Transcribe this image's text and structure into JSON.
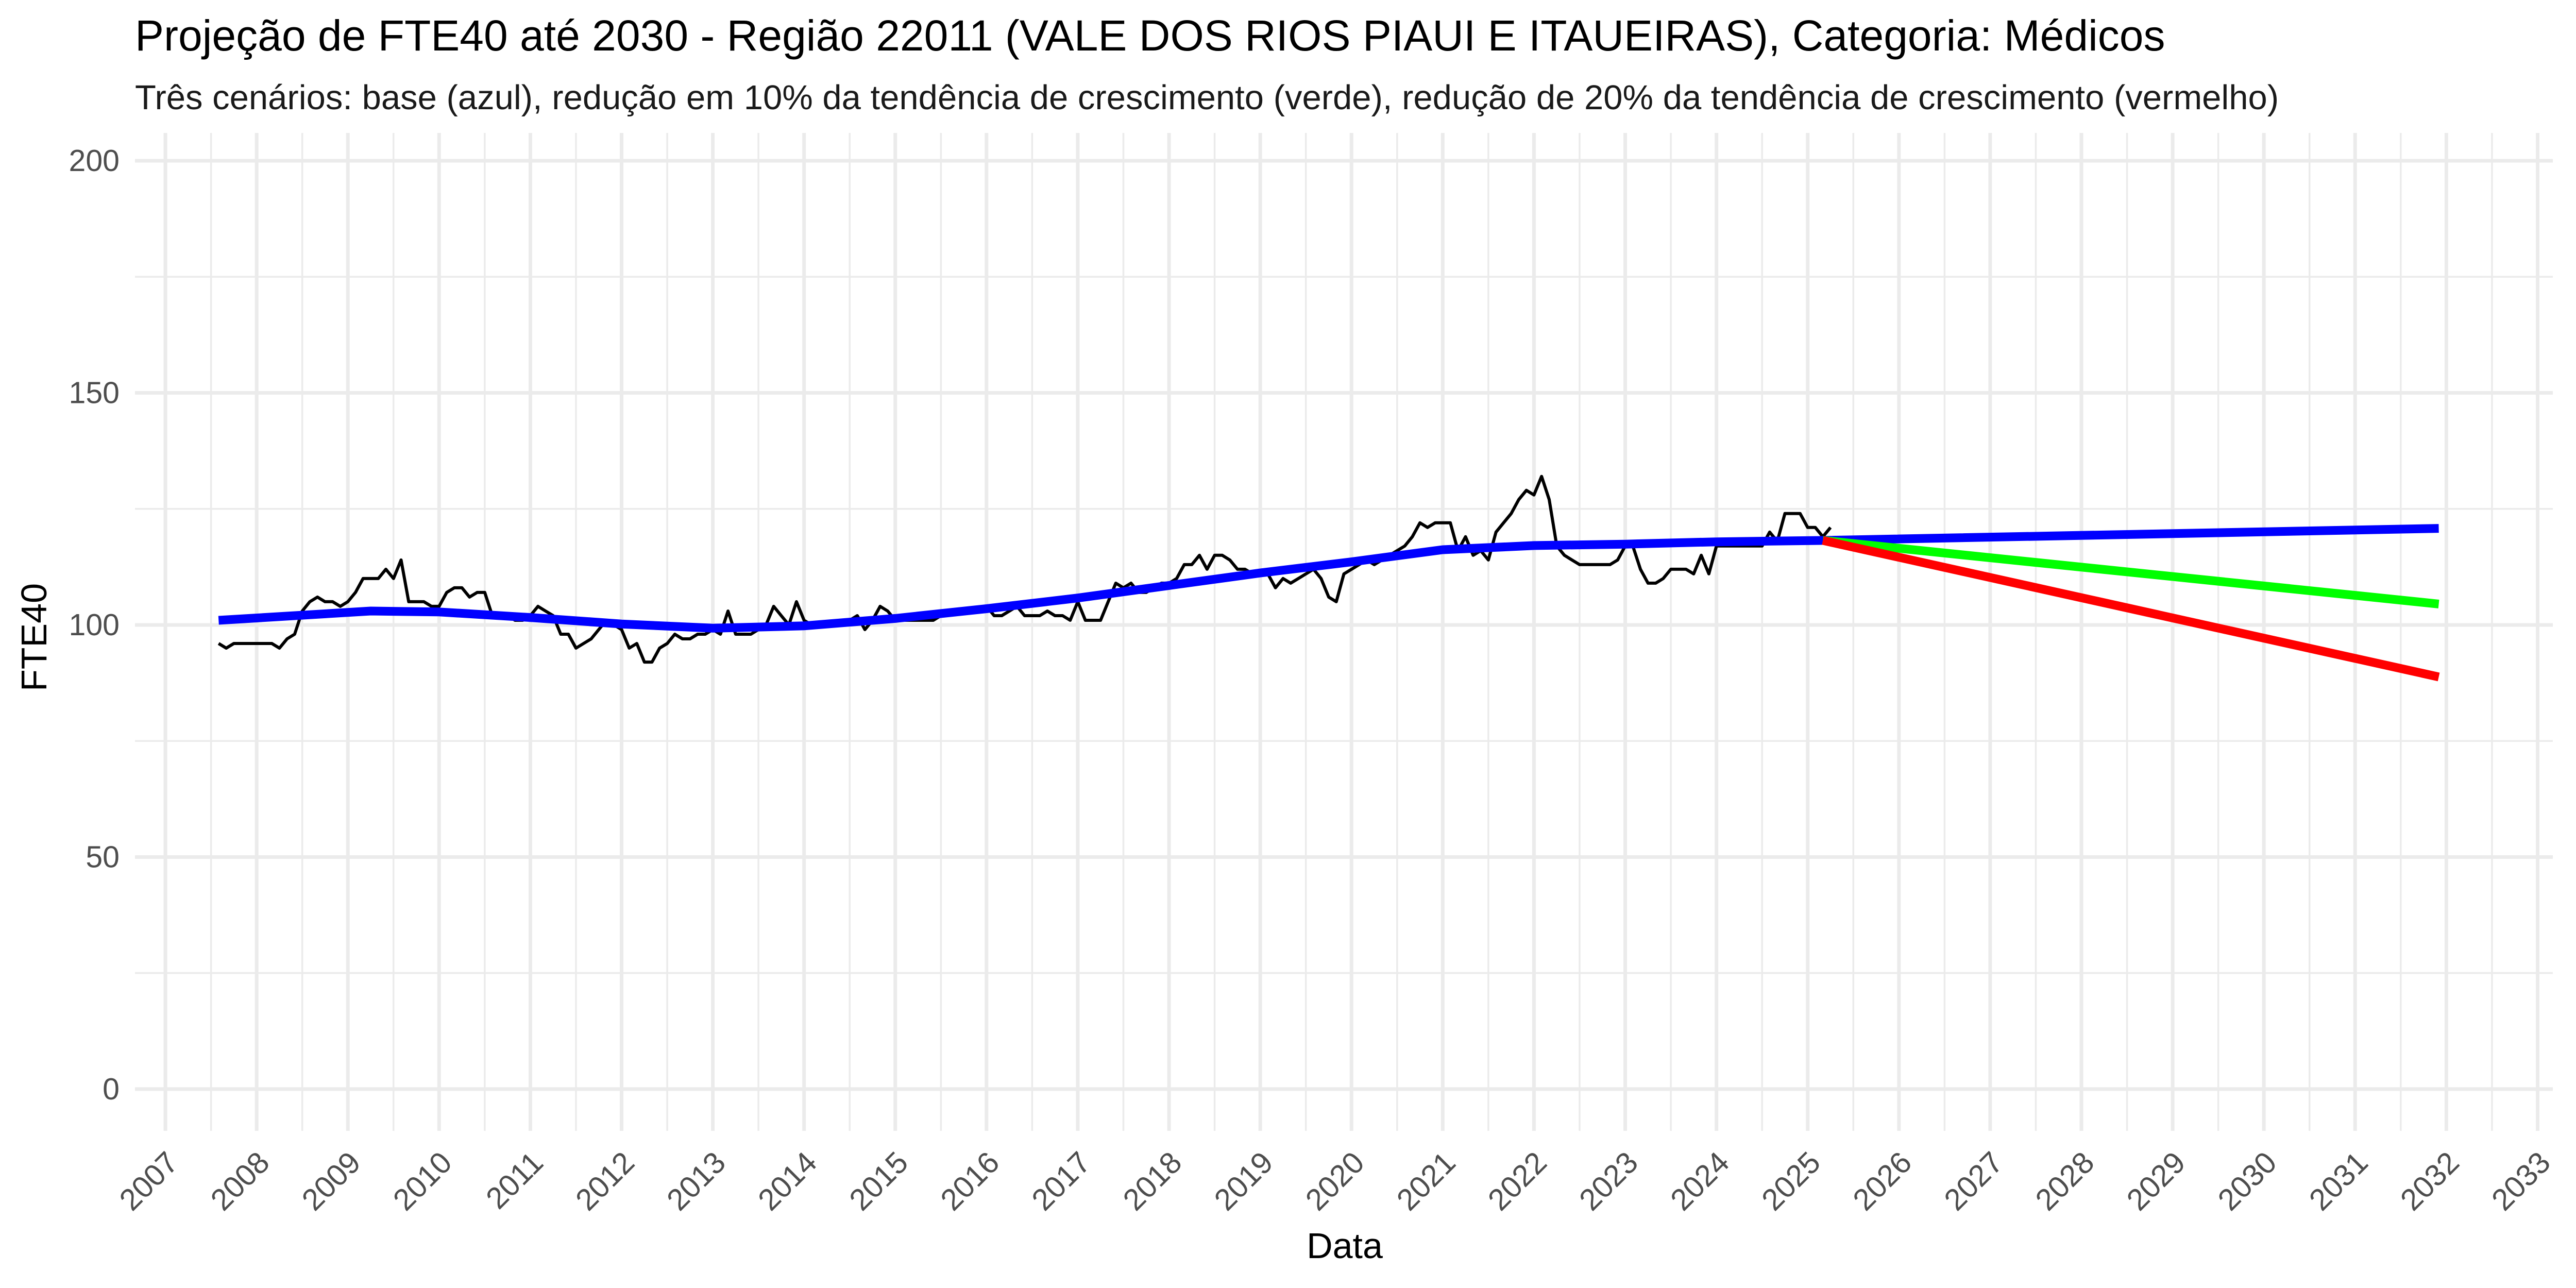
{
  "chart_data": {
    "type": "line",
    "title": "Projeção de FTE40 até 2030 - Região 22011 (VALE DOS RIOS PIAUI E ITAUEIRAS), Categoria: Médicos",
    "subtitle": "Três cenários: base (azul), redução em 10% da tendência de crescimento (verde), redução de 20% da tendência de crescimento (vermelho)",
    "xlabel": "Data",
    "ylabel": "FTE40",
    "xlim": [
      "2006-09",
      "2033-03"
    ],
    "ylim": [
      -9,
      206
    ],
    "x_ticks": [
      "2007",
      "2008",
      "2009",
      "2010",
      "2011",
      "2012",
      "2013",
      "2014",
      "2015",
      "2016",
      "2017",
      "2018",
      "2019",
      "2020",
      "2021",
      "2022",
      "2023",
      "2024",
      "2025",
      "2026",
      "2027",
      "2028",
      "2029",
      "2030",
      "2031",
      "2032",
      "2033"
    ],
    "y_ticks": [
      0,
      50,
      100,
      150,
      200
    ],
    "grid": true,
    "legend": "none",
    "colors": {
      "observed": "#000000",
      "base": "#0000ff",
      "reduction_10": "#00ff00",
      "reduction_20": "#ff0000",
      "grid": "#ebebeb"
    },
    "series": [
      {
        "color": "#000000",
        "points": [
          [
            "2007-08",
            96
          ],
          [
            "2007-09",
            95
          ],
          [
            "2007-10",
            96
          ],
          [
            "2007-11",
            96
          ],
          [
            "2007-12",
            96
          ],
          [
            "2008-01",
            96
          ],
          [
            "2008-02",
            96
          ],
          [
            "2008-03",
            96
          ],
          [
            "2008-04",
            95
          ],
          [
            "2008-05",
            97
          ],
          [
            "2008-06",
            98
          ],
          [
            "2008-07",
            103
          ],
          [
            "2008-08",
            105
          ],
          [
            "2008-09",
            106
          ],
          [
            "2008-10",
            105
          ],
          [
            "2008-11",
            105
          ],
          [
            "2008-12",
            104
          ],
          [
            "2009-01",
            105
          ],
          [
            "2009-02",
            107
          ],
          [
            "2009-03",
            110
          ],
          [
            "2009-04",
            110
          ],
          [
            "2009-05",
            110
          ],
          [
            "2009-06",
            112
          ],
          [
            "2009-07",
            110
          ],
          [
            "2009-08",
            114
          ],
          [
            "2009-09",
            105
          ],
          [
            "2009-10",
            105
          ],
          [
            "2009-11",
            105
          ],
          [
            "2009-12",
            104
          ],
          [
            "2010-01",
            104
          ],
          [
            "2010-02",
            107
          ],
          [
            "2010-03",
            108
          ],
          [
            "2010-04",
            108
          ],
          [
            "2010-05",
            106
          ],
          [
            "2010-06",
            107
          ],
          [
            "2010-07",
            107
          ],
          [
            "2010-08",
            102
          ],
          [
            "2010-09",
            102
          ],
          [
            "2010-10",
            102
          ],
          [
            "2010-11",
            101
          ],
          [
            "2010-12",
            101
          ],
          [
            "2011-01",
            102
          ],
          [
            "2011-02",
            104
          ],
          [
            "2011-03",
            103
          ],
          [
            "2011-04",
            102
          ],
          [
            "2011-05",
            98
          ],
          [
            "2011-06",
            98
          ],
          [
            "2011-07",
            95
          ],
          [
            "2011-08",
            96
          ],
          [
            "2011-09",
            97
          ],
          [
            "2011-10",
            99
          ],
          [
            "2011-11",
            101
          ],
          [
            "2011-12",
            100
          ],
          [
            "2012-01",
            99
          ],
          [
            "2012-02",
            95
          ],
          [
            "2012-03",
            96
          ],
          [
            "2012-04",
            92
          ],
          [
            "2012-05",
            92
          ],
          [
            "2012-06",
            95
          ],
          [
            "2012-07",
            96
          ],
          [
            "2012-08",
            98
          ],
          [
            "2012-09",
            97
          ],
          [
            "2012-10",
            97
          ],
          [
            "2012-11",
            98
          ],
          [
            "2012-12",
            98
          ],
          [
            "2013-01",
            99
          ],
          [
            "2013-02",
            98
          ],
          [
            "2013-03",
            103
          ],
          [
            "2013-04",
            98
          ],
          [
            "2013-05",
            98
          ],
          [
            "2013-06",
            98
          ],
          [
            "2013-07",
            99
          ],
          [
            "2013-08",
            100
          ],
          [
            "2013-09",
            104
          ],
          [
            "2013-10",
            102
          ],
          [
            "2013-11",
            100
          ],
          [
            "2013-12",
            105
          ],
          [
            "2014-01",
            101
          ],
          [
            "2014-02",
            100
          ],
          [
            "2014-03",
            100
          ],
          [
            "2014-04",
            100
          ],
          [
            "2014-05",
            100
          ],
          [
            "2014-06",
            101
          ],
          [
            "2014-07",
            101
          ],
          [
            "2014-08",
            102
          ],
          [
            "2014-09",
            99
          ],
          [
            "2014-10",
            101
          ],
          [
            "2014-11",
            104
          ],
          [
            "2014-12",
            103
          ],
          [
            "2015-01",
            101
          ],
          [
            "2015-02",
            101
          ],
          [
            "2015-03",
            101
          ],
          [
            "2015-04",
            101
          ],
          [
            "2015-05",
            101
          ],
          [
            "2015-06",
            101
          ],
          [
            "2015-07",
            102
          ],
          [
            "2015-08",
            103
          ],
          [
            "2015-09",
            103
          ],
          [
            "2015-10",
            103
          ],
          [
            "2015-11",
            103
          ],
          [
            "2015-12",
            103
          ],
          [
            "2016-01",
            104
          ],
          [
            "2016-02",
            102
          ],
          [
            "2016-03",
            102
          ],
          [
            "2016-04",
            103
          ],
          [
            "2016-05",
            104
          ],
          [
            "2016-06",
            102
          ],
          [
            "2016-07",
            102
          ],
          [
            "2016-08",
            102
          ],
          [
            "2016-09",
            103
          ],
          [
            "2016-10",
            102
          ],
          [
            "2016-11",
            102
          ],
          [
            "2016-12",
            101
          ],
          [
            "2017-01",
            105
          ],
          [
            "2017-02",
            101
          ],
          [
            "2017-03",
            101
          ],
          [
            "2017-04",
            101
          ],
          [
            "2017-05",
            105
          ],
          [
            "2017-06",
            109
          ],
          [
            "2017-07",
            108
          ],
          [
            "2017-08",
            109
          ],
          [
            "2017-09",
            107
          ],
          [
            "2017-10",
            107
          ],
          [
            "2017-11",
            108
          ],
          [
            "2017-12",
            109
          ],
          [
            "2018-01",
            109
          ],
          [
            "2018-02",
            110
          ],
          [
            "2018-03",
            113
          ],
          [
            "2018-04",
            113
          ],
          [
            "2018-05",
            115
          ],
          [
            "2018-06",
            112
          ],
          [
            "2018-07",
            115
          ],
          [
            "2018-08",
            115
          ],
          [
            "2018-09",
            114
          ],
          [
            "2018-10",
            112
          ],
          [
            "2018-11",
            112
          ],
          [
            "2018-12",
            111
          ],
          [
            "2019-01",
            111
          ],
          [
            "2019-02",
            111
          ],
          [
            "2019-03",
            108
          ],
          [
            "2019-04",
            110
          ],
          [
            "2019-05",
            109
          ],
          [
            "2019-06",
            110
          ],
          [
            "2019-07",
            111
          ],
          [
            "2019-08",
            112
          ],
          [
            "2019-09",
            110
          ],
          [
            "2019-10",
            106
          ],
          [
            "2019-11",
            105
          ],
          [
            "2019-12",
            111
          ],
          [
            "2020-01",
            112
          ],
          [
            "2020-02",
            113
          ],
          [
            "2020-03",
            114
          ],
          [
            "2020-04",
            113
          ],
          [
            "2020-05",
            114
          ],
          [
            "2020-06",
            115
          ],
          [
            "2020-07",
            116
          ],
          [
            "2020-08",
            117
          ],
          [
            "2020-09",
            119
          ],
          [
            "2020-10",
            122
          ],
          [
            "2020-11",
            121
          ],
          [
            "2020-12",
            122
          ],
          [
            "2021-01",
            122
          ],
          [
            "2021-02",
            122
          ],
          [
            "2021-03",
            116
          ],
          [
            "2021-04",
            119
          ],
          [
            "2021-05",
            115
          ],
          [
            "2021-06",
            116
          ],
          [
            "2021-07",
            114
          ],
          [
            "2021-08",
            120
          ],
          [
            "2021-09",
            122
          ],
          [
            "2021-10",
            124
          ],
          [
            "2021-11",
            127
          ],
          [
            "2021-12",
            129
          ],
          [
            "2022-01",
            128
          ],
          [
            "2022-02",
            132
          ],
          [
            "2022-03",
            127
          ],
          [
            "2022-04",
            117
          ],
          [
            "2022-05",
            115
          ],
          [
            "2022-06",
            114
          ],
          [
            "2022-07",
            113
          ],
          [
            "2022-08",
            113
          ],
          [
            "2022-09",
            113
          ],
          [
            "2022-10",
            113
          ],
          [
            "2022-11",
            113
          ],
          [
            "2022-12",
            114
          ],
          [
            "2023-01",
            117
          ],
          [
            "2023-02",
            117
          ],
          [
            "2023-03",
            112
          ],
          [
            "2023-04",
            109
          ],
          [
            "2023-05",
            109
          ],
          [
            "2023-06",
            110
          ],
          [
            "2023-07",
            112
          ],
          [
            "2023-08",
            112
          ],
          [
            "2023-09",
            112
          ],
          [
            "2023-10",
            111
          ],
          [
            "2023-11",
            115
          ],
          [
            "2023-12",
            111
          ],
          [
            "2024-01",
            117
          ],
          [
            "2024-02",
            117
          ],
          [
            "2024-03",
            117
          ],
          [
            "2024-04",
            117
          ],
          [
            "2024-05",
            117
          ],
          [
            "2024-06",
            117
          ],
          [
            "2024-07",
            117
          ],
          [
            "2024-08",
            120
          ],
          [
            "2024-09",
            118
          ],
          [
            "2024-10",
            124
          ],
          [
            "2024-11",
            124
          ],
          [
            "2024-12",
            124
          ],
          [
            "2025-01",
            121
          ],
          [
            "2025-02",
            121
          ],
          [
            "2025-03",
            119
          ],
          [
            "2025-04",
            121
          ]
        ]
      },
      {
        "color": "#0000ff",
        "points": [
          [
            "2007-08",
            101
          ],
          [
            "2009-04",
            103
          ],
          [
            "2010-01",
            102.8
          ],
          [
            "2011-01",
            101.6
          ],
          [
            "2012-01",
            100.2
          ],
          [
            "2013-01",
            99.3
          ],
          [
            "2014-01",
            99.8
          ],
          [
            "2015-01",
            101.4
          ],
          [
            "2016-01",
            103.5
          ],
          [
            "2017-01",
            105.8
          ],
          [
            "2018-01",
            108.5
          ],
          [
            "2019-01",
            111.2
          ],
          [
            "2020-01",
            113.6
          ],
          [
            "2021-01",
            116.2
          ],
          [
            "2022-01",
            117.1
          ],
          [
            "2023-01",
            117.4
          ],
          [
            "2024-01",
            117.9
          ],
          [
            "2025-03",
            118.2
          ],
          [
            "2031-12",
            120.8
          ]
        ]
      },
      {
        "color": "#00ff00",
        "points": [
          [
            "2025-03",
            118.2
          ],
          [
            "2031-12",
            104.5
          ]
        ]
      },
      {
        "color": "#ff0000",
        "points": [
          [
            "2025-03",
            118.2
          ],
          [
            "2031-12",
            88.8
          ]
        ]
      }
    ]
  }
}
